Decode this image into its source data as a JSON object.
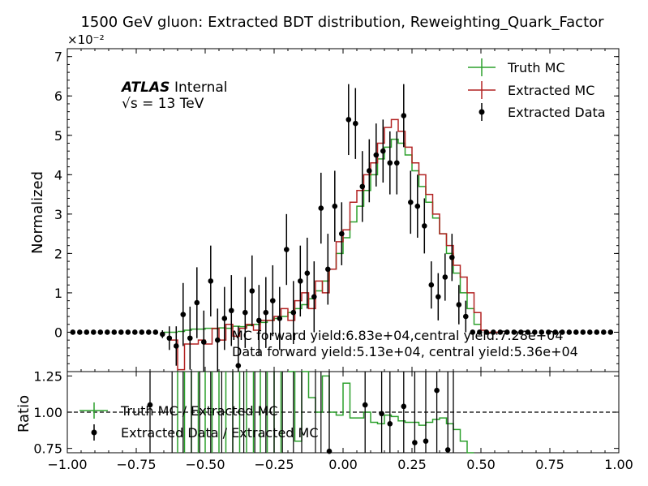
{
  "chart_data": {
    "title": "1500 GeV gluon: Extracted BDT distribution, Reweighting_Quark_Factor",
    "atlas_label": "ATLAS",
    "atlas_sub": "Internal",
    "energy_label": "√s = 13 TeV",
    "top": {
      "type": "line",
      "ylabel": "Normalized",
      "y_multiplier": "×10⁻²",
      "ylim": [
        -1,
        7.2
      ],
      "yticks": [
        0,
        1,
        2,
        3,
        4,
        5,
        6,
        7
      ],
      "xlim": [
        -1,
        1
      ],
      "legend_position": "top-right",
      "legend": [
        "Truth MC",
        "Extracted MC",
        "Extracted Data"
      ],
      "annotations": [
        "MC forward yield:6.83e+04,central yield:7.28e+04",
        "Data forward yield:5.13e+04, central yield:5.36e+04"
      ],
      "series": [
        {
          "name": "Truth MC",
          "color": "#2ca02c",
          "bins": [
            [
              -0.6,
              0.02
            ],
            [
              -0.575,
              0.05
            ],
            [
              -0.55,
              0.08
            ],
            [
              -0.525,
              0.08
            ],
            [
              -0.5,
              0.1
            ],
            [
              -0.475,
              0.09
            ],
            [
              -0.45,
              0.11
            ],
            [
              -0.425,
              0.1
            ],
            [
              -0.4,
              0.15
            ],
            [
              -0.375,
              0.14
            ],
            [
              -0.35,
              0.17
            ],
            [
              -0.325,
              0.2
            ],
            [
              -0.3,
              0.25
            ],
            [
              -0.275,
              0.3
            ],
            [
              -0.25,
              0.35
            ],
            [
              -0.225,
              0.4
            ],
            [
              -0.2,
              0.5
            ],
            [
              -0.175,
              0.6
            ],
            [
              -0.15,
              0.7
            ],
            [
              -0.125,
              0.85
            ],
            [
              -0.1,
              1.05
            ],
            [
              -0.075,
              1.3
            ],
            [
              -0.05,
              1.6
            ],
            [
              -0.025,
              2.0
            ],
            [
              0.0,
              2.4
            ],
            [
              0.025,
              2.8
            ],
            [
              0.05,
              3.2
            ],
            [
              0.075,
              3.6
            ],
            [
              0.1,
              4.0
            ],
            [
              0.125,
              4.4
            ],
            [
              0.15,
              4.7
            ],
            [
              0.175,
              4.9
            ],
            [
              0.2,
              4.8
            ],
            [
              0.225,
              4.5
            ],
            [
              0.25,
              4.1
            ],
            [
              0.275,
              3.7
            ],
            [
              0.3,
              3.3
            ],
            [
              0.325,
              2.9
            ],
            [
              0.35,
              2.5
            ],
            [
              0.375,
              2.0
            ],
            [
              0.4,
              1.5
            ],
            [
              0.425,
              1.0
            ],
            [
              0.45,
              0.6
            ],
            [
              0.475,
              0.2
            ]
          ]
        },
        {
          "name": "Extracted MC",
          "color": "#b22222",
          "bins": [
            [
              -0.625,
              -0.2
            ],
            [
              -0.6,
              -0.95
            ],
            [
              -0.575,
              -0.3
            ],
            [
              -0.55,
              -0.3
            ],
            [
              -0.525,
              -0.2
            ],
            [
              -0.5,
              -0.3
            ],
            [
              -0.475,
              0.1
            ],
            [
              -0.45,
              -0.2
            ],
            [
              -0.425,
              0.2
            ],
            [
              -0.4,
              -0.1
            ],
            [
              -0.375,
              0.1
            ],
            [
              -0.35,
              0.2
            ],
            [
              -0.325,
              0.05
            ],
            [
              -0.3,
              0.3
            ],
            [
              -0.275,
              0.3
            ],
            [
              -0.25,
              0.4
            ],
            [
              -0.225,
              0.6
            ],
            [
              -0.2,
              0.3
            ],
            [
              -0.175,
              0.8
            ],
            [
              -0.15,
              1.0
            ],
            [
              -0.125,
              0.6
            ],
            [
              -0.1,
              1.3
            ],
            [
              -0.075,
              1.0
            ],
            [
              -0.05,
              1.6
            ],
            [
              -0.025,
              2.3
            ],
            [
              0.0,
              2.6
            ],
            [
              0.025,
              3.3
            ],
            [
              0.05,
              3.6
            ],
            [
              0.075,
              4.0
            ],
            [
              0.1,
              4.3
            ],
            [
              0.125,
              4.8
            ],
            [
              0.15,
              5.2
            ],
            [
              0.175,
              5.4
            ],
            [
              0.2,
              5.1
            ],
            [
              0.225,
              4.7
            ],
            [
              0.25,
              4.3
            ],
            [
              0.275,
              4.0
            ],
            [
              0.3,
              3.5
            ],
            [
              0.325,
              3.0
            ],
            [
              0.35,
              2.5
            ],
            [
              0.375,
              2.2
            ],
            [
              0.4,
              1.7
            ],
            [
              0.425,
              1.4
            ],
            [
              0.45,
              1.0
            ],
            [
              0.475,
              0.5
            ],
            [
              0.5,
              0.05
            ]
          ]
        },
        {
          "name": "Extracted Data",
          "color": "#000000",
          "points": [
            [
              -0.98,
              0
            ],
            [
              -0.955,
              0
            ],
            [
              -0.93,
              0
            ],
            [
              -0.905,
              0
            ],
            [
              -0.88,
              0
            ],
            [
              -0.855,
              0
            ],
            [
              -0.83,
              0
            ],
            [
              -0.805,
              0
            ],
            [
              -0.78,
              0
            ],
            [
              -0.755,
              0
            ],
            [
              -0.73,
              0
            ],
            [
              -0.705,
              0
            ],
            [
              -0.68,
              0
            ],
            [
              -0.655,
              -0.05
            ],
            [
              -0.63,
              -0.15
            ],
            [
              -0.605,
              -0.35
            ],
            [
              -0.58,
              0.45
            ],
            [
              -0.555,
              -0.15
            ],
            [
              -0.53,
              0.75
            ],
            [
              -0.505,
              -0.25
            ],
            [
              -0.48,
              1.3
            ],
            [
              -0.455,
              -0.2
            ],
            [
              -0.43,
              0.35
            ],
            [
              -0.405,
              0.55
            ],
            [
              -0.38,
              -0.85
            ],
            [
              -0.355,
              0.5
            ],
            [
              -0.33,
              1.05
            ],
            [
              -0.305,
              0.3
            ],
            [
              -0.28,
              0.5
            ],
            [
              -0.255,
              0.8
            ],
            [
              -0.23,
              0.35
            ],
            [
              -0.205,
              2.1
            ],
            [
              -0.18,
              0.5
            ],
            [
              -0.155,
              1.3
            ],
            [
              -0.13,
              1.5
            ],
            [
              -0.105,
              0.9
            ],
            [
              -0.08,
              3.15
            ],
            [
              -0.055,
              1.6
            ],
            [
              -0.03,
              3.2
            ],
            [
              -0.005,
              2.5
            ],
            [
              0.02,
              5.4
            ],
            [
              0.045,
              5.3
            ],
            [
              0.07,
              3.7
            ],
            [
              0.095,
              4.1
            ],
            [
              0.12,
              4.5
            ],
            [
              0.145,
              4.6
            ],
            [
              0.17,
              4.3
            ],
            [
              0.195,
              4.3
            ],
            [
              0.22,
              5.5
            ],
            [
              0.245,
              3.3
            ],
            [
              0.27,
              3.2
            ],
            [
              0.295,
              2.7
            ],
            [
              0.32,
              1.2
            ],
            [
              0.345,
              0.9
            ],
            [
              0.37,
              1.4
            ],
            [
              0.395,
              1.9
            ],
            [
              0.42,
              0.7
            ],
            [
              0.445,
              0.4
            ],
            [
              0.47,
              0
            ],
            [
              0.495,
              0
            ],
            [
              0.52,
              0
            ],
            [
              0.545,
              0
            ],
            [
              0.57,
              0
            ],
            [
              0.595,
              0
            ],
            [
              0.62,
              0
            ],
            [
              0.645,
              0
            ],
            [
              0.67,
              0
            ],
            [
              0.695,
              0
            ],
            [
              0.72,
              0
            ],
            [
              0.745,
              0
            ],
            [
              0.77,
              0
            ],
            [
              0.795,
              0
            ],
            [
              0.82,
              0
            ],
            [
              0.845,
              0
            ],
            [
              0.87,
              0
            ],
            [
              0.895,
              0
            ],
            [
              0.92,
              0
            ],
            [
              0.945,
              0
            ],
            [
              0.97,
              0
            ]
          ],
          "errors": [
            0.06,
            0.06,
            0.06,
            0.06,
            0.06,
            0.06,
            0.06,
            0.06,
            0.06,
            0.06,
            0.06,
            0.06,
            0.06,
            0.1,
            0.3,
            0.5,
            0.8,
            0.8,
            0.9,
            0.8,
            0.9,
            0.8,
            0.8,
            0.9,
            1.0,
            0.9,
            0.9,
            0.9,
            0.9,
            0.9,
            0.8,
            0.9,
            0.8,
            0.9,
            0.9,
            0.9,
            0.9,
            0.9,
            0.9,
            0.8,
            0.9,
            0.9,
            0.9,
            0.8,
            0.8,
            0.8,
            0.8,
            0.8,
            0.8,
            0.8,
            0.8,
            0.7,
            0.6,
            0.6,
            0.6,
            0.6,
            0.5,
            0.4,
            0.06,
            0.06,
            0.06,
            0.06,
            0.06,
            0.06,
            0.06,
            0.06,
            0.06,
            0.06,
            0.06,
            0.06,
            0.06,
            0.06,
            0.06,
            0.06,
            0.06,
            0.06,
            0.06,
            0.06,
            0.06
          ]
        }
      ]
    },
    "bottom": {
      "type": "line",
      "ylabel": "Ratio",
      "ylim": [
        0.72,
        1.28
      ],
      "yticks": [
        0.75,
        1.0,
        1.25
      ],
      "ytick_labels": [
        "0.75",
        "1.00",
        "1.25"
      ],
      "reference_line": 1.0,
      "xlim": [
        -1,
        1
      ],
      "xticks": [
        -1.0,
        -0.75,
        -0.5,
        -0.25,
        0.0,
        0.25,
        0.5,
        0.75,
        1.0
      ],
      "xtick_labels": [
        "−1.00",
        "−0.75",
        "−0.50",
        "−0.25",
        "0.00",
        "0.25",
        "0.50",
        "0.75",
        "1.00"
      ],
      "legend_position": "top-left",
      "legend": [
        "Truth MC / Extracted MC",
        "Extracted Data / Extracted MC"
      ],
      "series": [
        {
          "name": "Truth MC / Extracted MC",
          "color": "#2ca02c",
          "bins": [
            [
              -0.2,
              1.4
            ],
            [
              -0.175,
              0.8
            ],
            [
              -0.15,
              1.4
            ],
            [
              -0.125,
              1.1
            ],
            [
              -0.1,
              1.0
            ],
            [
              -0.075,
              1.25
            ],
            [
              -0.05,
              1.0
            ],
            [
              -0.025,
              0.98
            ],
            [
              0.0,
              1.2
            ],
            [
              0.025,
              0.96
            ],
            [
              0.05,
              0.96
            ],
            [
              0.075,
              1.0
            ],
            [
              0.1,
              0.93
            ],
            [
              0.125,
              0.92
            ],
            [
              0.15,
              0.98
            ],
            [
              0.175,
              0.97
            ],
            [
              0.2,
              0.94
            ],
            [
              0.225,
              0.93
            ],
            [
              0.25,
              0.93
            ],
            [
              0.275,
              0.91
            ],
            [
              0.3,
              0.93
            ],
            [
              0.325,
              0.95
            ],
            [
              0.35,
              0.96
            ],
            [
              0.375,
              0.92
            ],
            [
              0.4,
              0.88
            ],
            [
              0.425,
              0.8
            ],
            [
              0.45,
              0.7
            ]
          ],
          "extra_spikes_x": [
            -0.6,
            -0.55,
            -0.5,
            -0.45,
            -0.4,
            -0.35,
            -0.3,
            -0.25
          ]
        },
        {
          "name": "Extracted Data / Extracted MC",
          "color": "#000000",
          "points": [
            [
              -0.7,
              1.05
            ],
            [
              -0.05,
              0.73
            ],
            [
              0.08,
              1.05
            ],
            [
              0.14,
              0.99
            ],
            [
              0.17,
              0.92
            ],
            [
              0.22,
              1.04
            ],
            [
              0.26,
              0.79
            ],
            [
              0.3,
              0.8
            ],
            [
              0.34,
              1.15
            ],
            [
              0.38,
              0.74
            ],
            [
              0.4,
              0.7
            ]
          ]
        }
      ]
    }
  }
}
